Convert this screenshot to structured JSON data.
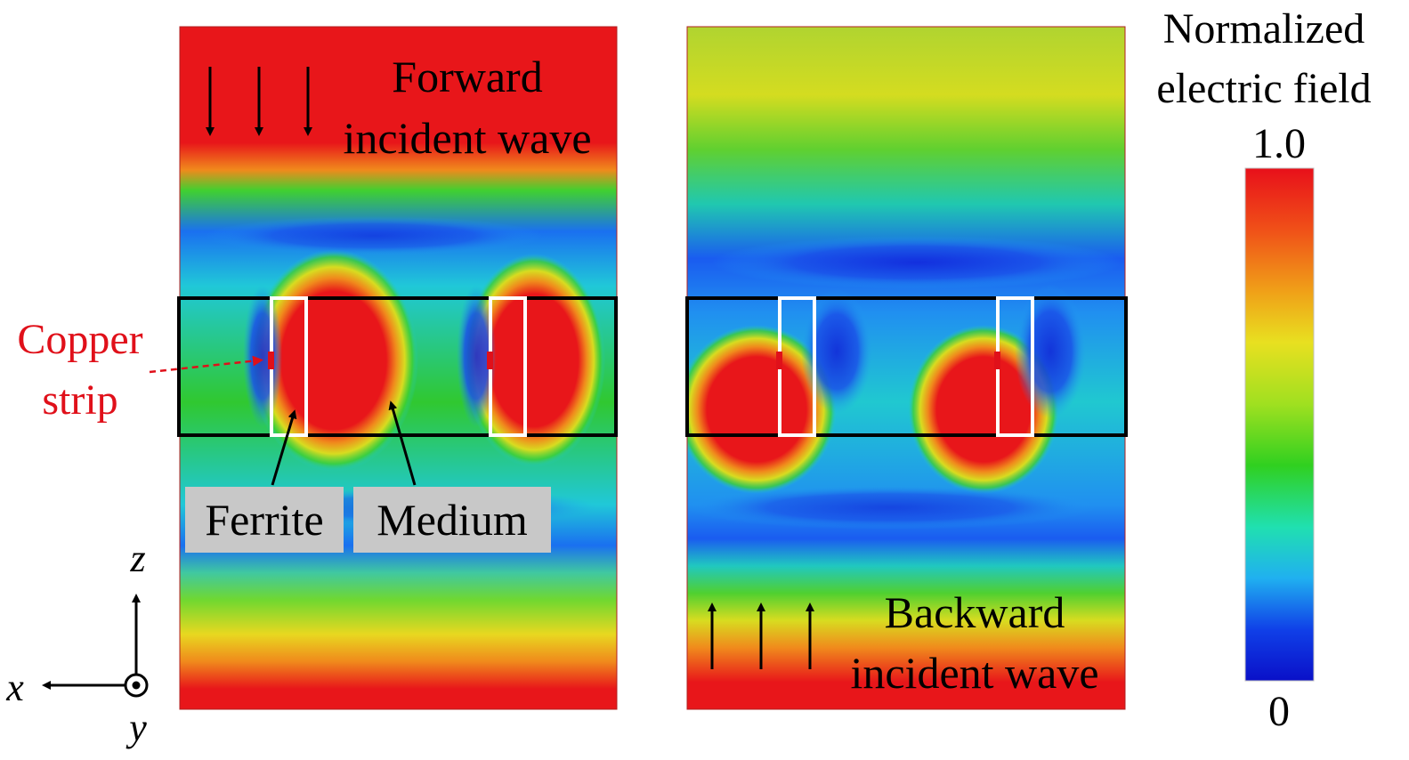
{
  "panels": {
    "forward": {
      "label_line1": "Forward",
      "label_line2": "incident wave"
    },
    "backward": {
      "label_line1": "Backward",
      "label_line2": "incident wave"
    }
  },
  "annotations": {
    "copper_line1": "Copper",
    "copper_line2": "strip",
    "ferrite": "Ferrite",
    "medium": "Medium"
  },
  "axes": {
    "z": "z",
    "x": "x",
    "y": "y"
  },
  "colorbar": {
    "title_line1": "Normalized",
    "title_line2": "electric field",
    "max": "1.0",
    "min": "0",
    "colors": [
      "#e8101a",
      "#f08018",
      "#e8e020",
      "#30d020",
      "#20e0b0",
      "#20b0f0",
      "#1040e8",
      "#0a10c8"
    ]
  },
  "field_colors": {
    "high": "#e8161a",
    "mid_high": "#f4a020",
    "mid": "#dcdc20",
    "green": "#30c830",
    "cyan": "#20d0c8",
    "blue": "#1a64f0",
    "deep_blue": "#1020d8"
  }
}
